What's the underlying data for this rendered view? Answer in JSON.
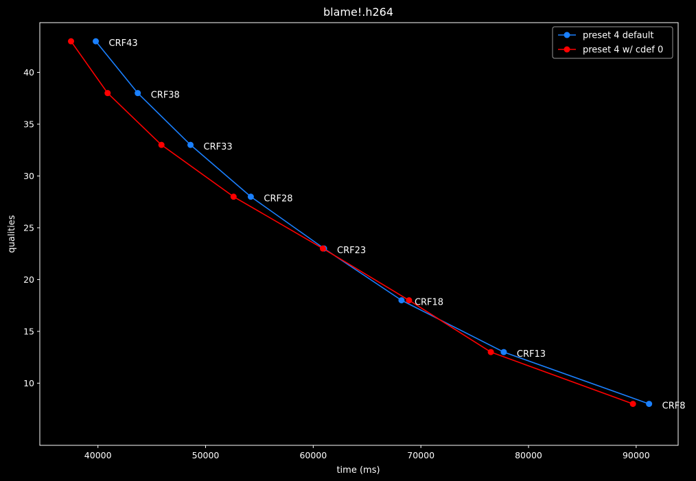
{
  "chart_data": {
    "type": "line",
    "title": "blame!.h264",
    "xlabel": "time (ms)",
    "ylabel": "qualities",
    "xlim": [
      34600,
      93900
    ],
    "ylim": [
      4.0,
      44.8
    ],
    "xticks": [
      40000,
      50000,
      60000,
      70000,
      80000,
      90000
    ],
    "yticks": [
      10,
      15,
      20,
      25,
      30,
      35,
      40
    ],
    "grid": false,
    "legend_position": "top-right",
    "background_color": "#000000",
    "foreground_color": "#ffffff",
    "series": [
      {
        "name": "preset 4 default",
        "color": "#1a80ff",
        "marker": "circle",
        "x": [
          39800,
          43700,
          48600,
          54200,
          61000,
          68200,
          77700,
          91200
        ],
        "y": [
          43,
          38,
          33,
          28,
          23,
          18,
          13,
          8
        ]
      },
      {
        "name": "preset 4 w/ cdef 0",
        "color": "#ff0000",
        "marker": "circle",
        "x": [
          37500,
          40900,
          45900,
          52600,
          60900,
          68900,
          76500,
          89700
        ],
        "y": [
          43,
          38,
          33,
          28,
          23,
          18,
          13,
          8
        ]
      }
    ],
    "annotations": [
      {
        "text": "CRF43",
        "x": 39800,
        "y": 43
      },
      {
        "text": "CRF38",
        "x": 43700,
        "y": 38
      },
      {
        "text": "CRF33",
        "x": 48600,
        "y": 33
      },
      {
        "text": "CRF28",
        "x": 54200,
        "y": 28
      },
      {
        "text": "CRF23",
        "x": 61000,
        "y": 23
      },
      {
        "text": "CRF18",
        "x": 68200,
        "y": 18
      },
      {
        "text": "CRF13",
        "x": 77700,
        "y": 13
      },
      {
        "text": "CRF8",
        "x": 91200,
        "y": 8
      }
    ]
  }
}
